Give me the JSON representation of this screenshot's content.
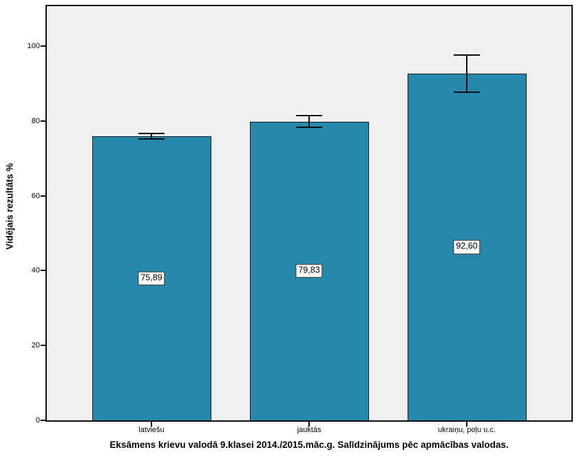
{
  "chart_data": {
    "type": "bar",
    "title": "Eksāmens krievu valodā 9.klasei 2014./2015.māc.g. Salīdzinājums pēc apmācības valodas.",
    "xlabel": "",
    "ylabel": "Vidējais rezultāts %",
    "categories": [
      "latviešu",
      "jauktās",
      "ukraiņu, poļu u.c."
    ],
    "values": [
      75.89,
      79.83,
      92.6
    ],
    "value_labels": [
      "75,89",
      "79,83",
      "92,60"
    ],
    "error_low": [
      75.1,
      78.3,
      87.7
    ],
    "error_high": [
      76.7,
      81.5,
      97.6
    ],
    "yticks": [
      0,
      20,
      40,
      60,
      80,
      100
    ],
    "ylim": [
      0,
      110.7
    ],
    "grid": "off",
    "legend": "none",
    "bar_color": "#2689AC",
    "bar_border_color": "#1a1a1a",
    "plot_background": "#f0f0f0",
    "outer_background": "#ffffff",
    "error_bar_color": "#0d0d0d"
  }
}
